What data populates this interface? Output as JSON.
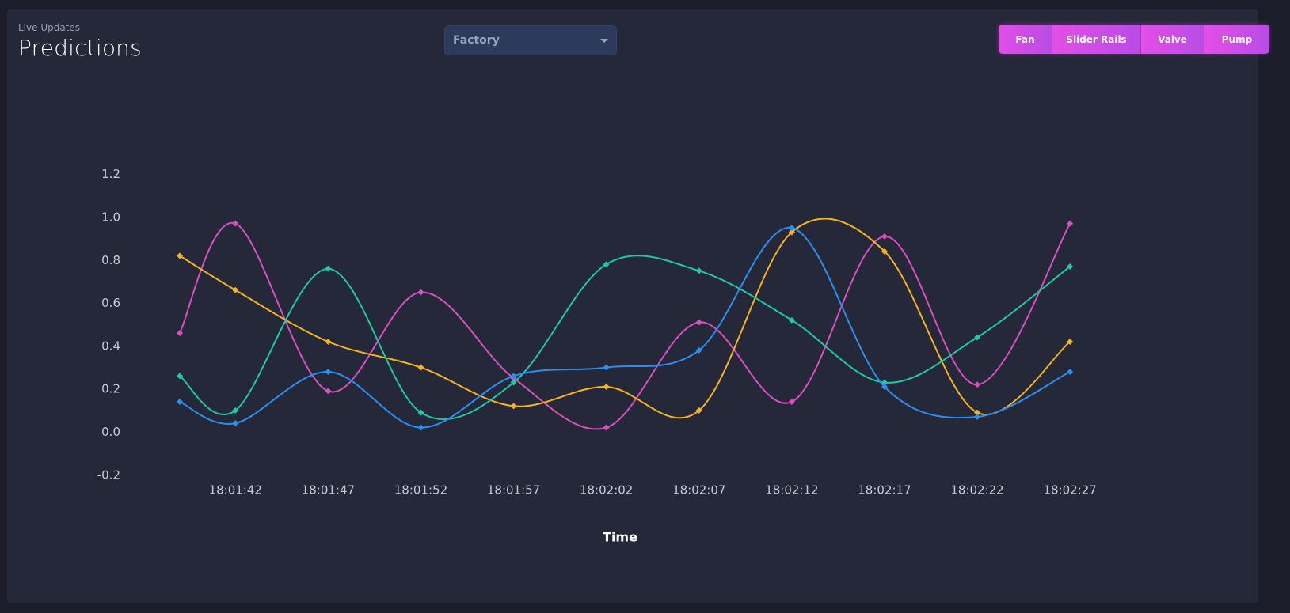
{
  "header": {
    "subtitle": "Live Updates",
    "title": "Predictions"
  },
  "selector": {
    "selected": "Factory"
  },
  "buttons": [
    {
      "label": "Fan"
    },
    {
      "label": "Slider Rails"
    },
    {
      "label": "Valve"
    },
    {
      "label": "Pump"
    }
  ],
  "colors": {
    "magenta": "#d94fc0",
    "orange": "#f5b323",
    "teal": "#1fc9a6",
    "blue": "#2b8ff0"
  },
  "chart_data": {
    "type": "line",
    "title": "",
    "xlabel": "Time",
    "ylabel": "",
    "ylim": [
      -0.2,
      1.2
    ],
    "yticks": [
      "1.2",
      "1.0",
      "0.8",
      "0.6",
      "0.4",
      "0.2",
      "0.0",
      "-0.2"
    ],
    "tick_labels": [
      "18:01:42",
      "18:01:47",
      "18:01:52",
      "18:01:57",
      "18:02:02",
      "18:02:07",
      "18:02:12",
      "18:02:17",
      "18:02:22",
      "18:02:27"
    ],
    "x": [
      "18:01:39",
      "18:01:42",
      "18:01:47",
      "18:01:52",
      "18:01:57",
      "18:02:02",
      "18:02:07",
      "18:02:12",
      "18:02:17",
      "18:02:22",
      "18:02:27"
    ],
    "series": [
      {
        "color": "#d94fc0",
        "values": [
          0.46,
          0.97,
          0.19,
          0.65,
          0.25,
          0.02,
          0.51,
          0.14,
          0.91,
          0.22,
          0.97
        ]
      },
      {
        "color": "#f5b323",
        "values": [
          0.82,
          0.66,
          0.42,
          0.3,
          0.12,
          0.21,
          0.1,
          0.93,
          0.84,
          0.09,
          0.42
        ]
      },
      {
        "color": "#1fc9a6",
        "values": [
          0.26,
          0.1,
          0.76,
          0.09,
          0.23,
          0.78,
          0.75,
          0.52,
          0.23,
          0.44,
          0.77
        ]
      },
      {
        "color": "#2b8ff0",
        "values": [
          0.14,
          0.04,
          0.28,
          0.02,
          0.26,
          0.3,
          0.38,
          0.95,
          0.21,
          0.07,
          0.28
        ]
      }
    ]
  }
}
